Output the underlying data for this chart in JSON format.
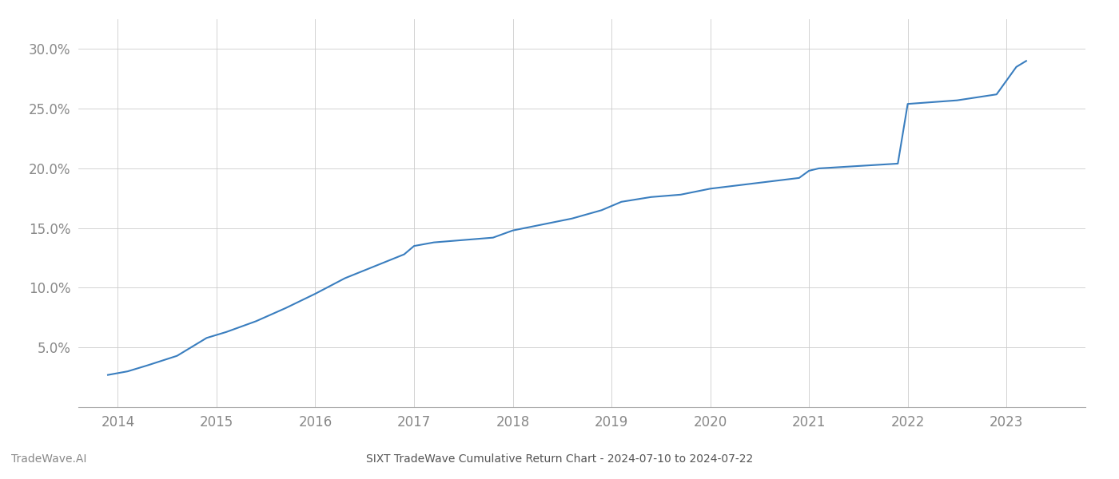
{
  "title": "SIXT TradeWave Cumulative Return Chart - 2024-07-10 to 2024-07-22",
  "watermark": "TradeWave.AI",
  "line_color": "#3a7ebf",
  "background_color": "#ffffff",
  "grid_color": "#cccccc",
  "x_values": [
    2013.9,
    2014.1,
    2014.3,
    2014.6,
    2014.9,
    2015.1,
    2015.4,
    2015.7,
    2016.0,
    2016.3,
    2016.6,
    2016.9,
    2017.0,
    2017.2,
    2017.5,
    2017.8,
    2018.0,
    2018.3,
    2018.6,
    2018.9,
    2019.1,
    2019.4,
    2019.7,
    2020.0,
    2020.3,
    2020.6,
    2020.9,
    2021.0,
    2021.1,
    2021.5,
    2021.9,
    2022.0,
    2022.5,
    2022.9,
    2023.1,
    2023.2
  ],
  "y_values": [
    0.027,
    0.03,
    0.035,
    0.043,
    0.058,
    0.063,
    0.072,
    0.083,
    0.095,
    0.108,
    0.118,
    0.128,
    0.135,
    0.138,
    0.14,
    0.142,
    0.148,
    0.153,
    0.158,
    0.165,
    0.172,
    0.176,
    0.178,
    0.183,
    0.186,
    0.189,
    0.192,
    0.198,
    0.2,
    0.202,
    0.204,
    0.254,
    0.257,
    0.262,
    0.285,
    0.29
  ],
  "xlim": [
    2013.6,
    2023.8
  ],
  "ylim": [
    0.0,
    0.325
  ],
  "yticks": [
    0.05,
    0.1,
    0.15,
    0.2,
    0.25,
    0.3
  ],
  "xticks": [
    2014,
    2015,
    2016,
    2017,
    2018,
    2019,
    2020,
    2021,
    2022,
    2023
  ],
  "tick_label_color": "#888888",
  "title_color": "#555555",
  "watermark_color": "#888888",
  "line_width": 1.5,
  "figsize": [
    14.0,
    6.0
  ],
  "dpi": 100
}
